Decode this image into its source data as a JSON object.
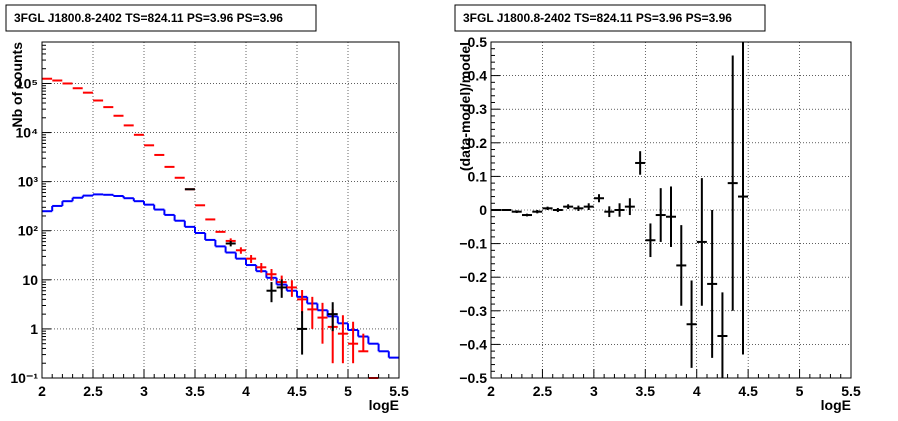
{
  "chart_data": [
    {
      "type": "histogram",
      "title": "3FGL J1800.8-2402 TS=824.11 PS=3.96 PS=3.96",
      "xlabel": "logE",
      "ylabel": "Nb of counts",
      "xlim": [
        2,
        5.5
      ],
      "ylim": [
        0.1,
        700000
      ],
      "yscale": "log",
      "grid": true,
      "x_ticks": [
        "2",
        "2.5",
        "3",
        "3.5",
        "4",
        "4.5",
        "5",
        "5.5"
      ],
      "y_ticks": [
        "10⁻¹",
        "1",
        "10",
        "10²",
        "10³",
        "10⁴",
        "10⁵"
      ],
      "bin_edges": [
        2.0,
        2.1,
        2.2,
        2.3,
        2.4,
        2.5,
        2.6,
        2.7,
        2.8,
        2.9,
        3.0,
        3.1,
        3.2,
        3.3,
        3.4,
        3.5,
        3.6,
        3.7,
        3.8,
        3.9,
        4.0,
        4.1,
        4.2,
        4.3,
        4.4,
        4.5,
        4.6,
        4.7,
        4.8,
        4.9,
        5.0,
        5.1,
        5.2,
        5.3,
        5.4,
        5.5
      ],
      "series": [
        {
          "name": "",
          "style": "step",
          "color": "#0000ff",
          "values": [
            250,
            320,
            400,
            470,
            520,
            550,
            540,
            510,
            460,
            400,
            340,
            270,
            210,
            160,
            120,
            90,
            65,
            48,
            36,
            27,
            20,
            15,
            11,
            8,
            6,
            4.5,
            3.3,
            2.4,
            1.8,
            1.3,
            0.95,
            0.7,
            0.5,
            0.35,
            0.26
          ]
        },
        {
          "name": "",
          "style": "errorbar",
          "color": "#ff0000",
          "x": [
            2.05,
            2.15,
            2.25,
            2.35,
            2.45,
            2.55,
            2.65,
            2.75,
            2.85,
            2.95,
            3.05,
            3.15,
            3.25,
            3.35,
            3.45,
            3.55,
            3.65,
            3.75,
            3.85,
            3.95,
            4.05,
            4.15,
            4.25,
            4.35,
            4.45,
            4.55,
            4.65,
            4.75,
            4.85,
            4.95,
            5.05,
            5.15,
            5.25
          ],
          "y": [
            125000,
            115000,
            100000,
            80000,
            65000,
            45000,
            33000,
            22000,
            14000,
            9000,
            5500,
            3500,
            2000,
            1200,
            700,
            330,
            170,
            95,
            62,
            40,
            27,
            18,
            13,
            9,
            7,
            4,
            2.5,
            1.7,
            1.1,
            0.8,
            0.5,
            0.35,
            0.1
          ],
          "yerr_low": [
            0,
            0,
            0,
            0,
            0,
            0,
            0,
            0,
            0,
            0,
            0,
            0,
            0,
            0,
            0,
            0,
            0,
            0,
            8,
            6,
            5,
            4,
            3.4,
            2.8,
            2.5,
            1.9,
            1.5,
            1.2,
            0.9,
            0.6,
            0.3,
            0,
            0
          ],
          "yerr_high": [
            0,
            0,
            0,
            0,
            0,
            0,
            0,
            0,
            0,
            0,
            0,
            0,
            0,
            0,
            0,
            0,
            0,
            0,
            8,
            6,
            5,
            4,
            3.6,
            3.2,
            2.8,
            2.2,
            2,
            1.7,
            1.4,
            1.1,
            0.9,
            0.45,
            0
          ]
        },
        {
          "name": "",
          "style": "errorbar",
          "color": "#000000",
          "x": [
            3.45,
            3.85,
            4.25,
            4.35,
            4.55,
            4.85
          ],
          "y": [
            700,
            55,
            6,
            7,
            1,
            2
          ],
          "yerr_low": [
            25,
            7,
            2.5,
            2.7,
            0.7,
            1.1
          ],
          "yerr_high": [
            25,
            7,
            3,
            3.2,
            1.3,
            1.5
          ]
        }
      ]
    },
    {
      "type": "scatter",
      "title": "3FGL J1800.8-2402 TS=824.11 PS=3.96 PS=3.96",
      "xlabel": "logE",
      "ylabel": "(data-model)/model",
      "xlim": [
        2,
        5.5
      ],
      "ylim": [
        -0.5,
        0.5
      ],
      "grid": true,
      "x_ticks": [
        "2",
        "2.5",
        "3",
        "3.5",
        "4",
        "4.5",
        "5",
        "5.5"
      ],
      "y_ticks": [
        "−0.5",
        "−0.4",
        "−0.3",
        "−0.2",
        "−0.1",
        "0",
        "0.1",
        "0.2",
        "0.3",
        "0.4",
        "0.5"
      ],
      "series": [
        {
          "name": "",
          "color": "#000000",
          "x": [
            2.05,
            2.15,
            2.25,
            2.35,
            2.45,
            2.55,
            2.65,
            2.75,
            2.85,
            2.95,
            3.05,
            3.15,
            3.25,
            3.35,
            3.45,
            3.55,
            3.65,
            3.75,
            3.85,
            3.95,
            4.05,
            4.15,
            4.25,
            4.35,
            4.45
          ],
          "y": [
            0.0,
            0.0,
            -0.005,
            -0.015,
            -0.005,
            0.005,
            0.0,
            0.01,
            0.005,
            0.01,
            0.035,
            -0.005,
            0.0,
            0.01,
            0.14,
            -0.09,
            -0.015,
            -0.02,
            -0.165,
            -0.34,
            -0.095,
            -0.22,
            -0.375,
            0.08,
            0.04
          ],
          "err": [
            0.003,
            0.003,
            0.004,
            0.004,
            0.005,
            0.005,
            0.006,
            0.007,
            0.008,
            0.01,
            0.012,
            0.016,
            0.02,
            0.025,
            0.035,
            0.05,
            0.08,
            0.09,
            0.12,
            0.13,
            0.19,
            0.22,
            0.13,
            0.38,
            0.47
          ]
        }
      ]
    }
  ]
}
